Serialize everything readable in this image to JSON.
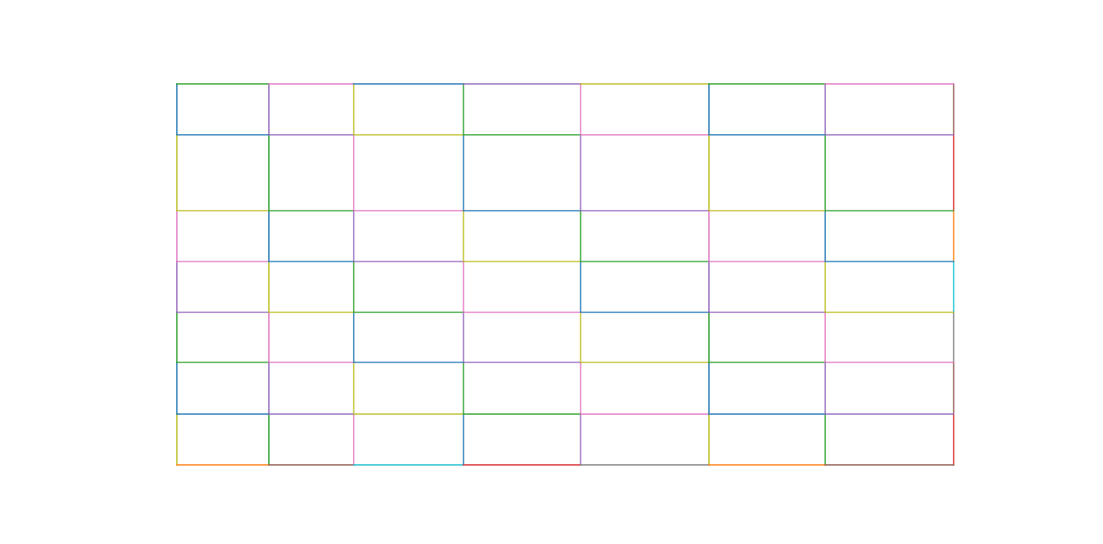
{
  "chart_data": {
    "type": "grid-of-colored-segments",
    "rows": 7,
    "columns": 7,
    "horizontal_segments": [
      [
        "#2ca02c",
        "#e377c2",
        "#1f77b4",
        "#9467bd",
        "#bcbd22",
        "#2ca02c",
        "#e377c2"
      ],
      [
        "#1f77b4",
        "#9467bd",
        "#bcbd22",
        "#2ca02c",
        "#e377c2",
        "#1f77b4",
        "#9467bd"
      ],
      [
        "#bcbd22",
        "#2ca02c",
        "#e377c2",
        "#1f77b4",
        "#9467bd",
        "#bcbd22",
        "#2ca02c"
      ],
      [
        "#e377c2",
        "#1f77b4",
        "#9467bd",
        "#bcbd22",
        "#2ca02c",
        "#e377c2",
        "#1f77b4"
      ],
      [
        "#9467bd",
        "#bcbd22",
        "#2ca02c",
        "#e377c2",
        "#1f77b4",
        "#9467bd",
        "#bcbd22"
      ],
      [
        "#2ca02c",
        "#e377c2",
        "#1f77b4",
        "#9467bd",
        "#bcbd22",
        "#2ca02c",
        "#e377c2"
      ],
      [
        "#1f77b4",
        "#9467bd",
        "#bcbd22",
        "#2ca02c",
        "#e377c2",
        "#1f77b4",
        "#9467bd"
      ],
      [
        "#ff7f0e",
        "#8c564b",
        "#17becf",
        "#d62728",
        "#7f7f7f",
        "#ff7f0e",
        "#8c564b"
      ]
    ],
    "vertical_segments": [
      [
        "#1f77b4",
        "#9467bd",
        "#bcbd22",
        "#2ca02c",
        "#e377c2",
        "#1f77b4",
        "#9467bd",
        "#8c564b"
      ],
      [
        "#bcbd22",
        "#2ca02c",
        "#e377c2",
        "#1f77b4",
        "#9467bd",
        "#bcbd22",
        "#2ca02c",
        "#d62728"
      ],
      [
        "#e377c2",
        "#1f77b4",
        "#9467bd",
        "#bcbd22",
        "#2ca02c",
        "#e377c2",
        "#1f77b4",
        "#ff7f0e"
      ],
      [
        "#9467bd",
        "#bcbd22",
        "#2ca02c",
        "#e377c2",
        "#1f77b4",
        "#9467bd",
        "#bcbd22",
        "#17becf"
      ],
      [
        "#2ca02c",
        "#e377c2",
        "#1f77b4",
        "#9467bd",
        "#bcbd22",
        "#2ca02c",
        "#e377c2",
        "#7f7f7f"
      ],
      [
        "#1f77b4",
        "#9467bd",
        "#bcbd22",
        "#2ca02c",
        "#e377c2",
        "#1f77b4",
        "#9467bd",
        "#8c564b"
      ],
      [
        "#bcbd22",
        "#2ca02c",
        "#e377c2",
        "#1f77b4",
        "#9467bd",
        "#bcbd22",
        "#2ca02c",
        "#d62728"
      ]
    ]
  }
}
